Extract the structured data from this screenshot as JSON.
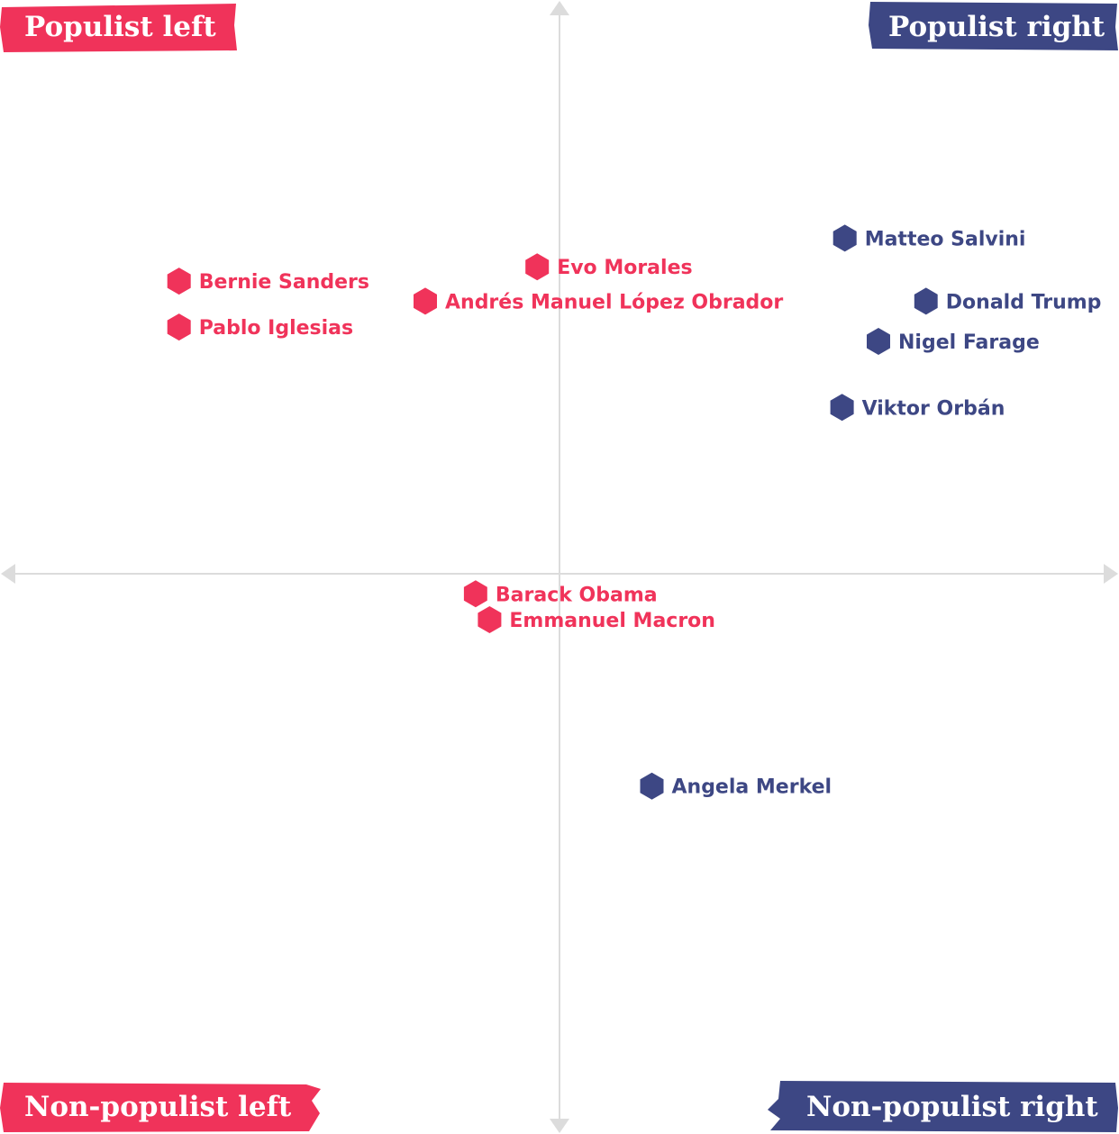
{
  "colors": {
    "left": "#f0335a",
    "right": "#3d4784",
    "axis": "#dcdcdc"
  },
  "chart_data": {
    "type": "scatter",
    "title": "",
    "xlabel": "",
    "ylabel": "",
    "xlim": [
      -1,
      1
    ],
    "ylim": [
      -1,
      1
    ],
    "grid": false,
    "quadrants": {
      "top_left": "Populist left",
      "top_right": "Populist right",
      "bottom_left": "Non-populist left",
      "bottom_right": "Non-populist right"
    },
    "series": [
      {
        "side": "left",
        "points": [
          {
            "label": "Bernie Sanders",
            "x": -0.68,
            "y": 0.51
          },
          {
            "label": "Pablo Iglesias",
            "x": -0.68,
            "y": 0.43
          },
          {
            "label": "Evo Morales",
            "x": -0.04,
            "y": 0.535
          },
          {
            "label": "Andrés Manuel López Obrador",
            "x": -0.24,
            "y": 0.475
          },
          {
            "label": "Barack Obama",
            "x": -0.15,
            "y": -0.035
          },
          {
            "label": "Emmanuel Macron",
            "x": -0.125,
            "y": -0.08
          }
        ]
      },
      {
        "side": "right",
        "points": [
          {
            "label": "Matteo Salvini",
            "x": 0.51,
            "y": 0.585
          },
          {
            "label": "Donald Trump",
            "x": 0.655,
            "y": 0.475
          },
          {
            "label": "Nigel Farage",
            "x": 0.57,
            "y": 0.405
          },
          {
            "label": "Viktor Orbán",
            "x": 0.505,
            "y": 0.29
          },
          {
            "label": "Angela Merkel",
            "x": 0.165,
            "y": -0.37
          }
        ]
      }
    ]
  }
}
